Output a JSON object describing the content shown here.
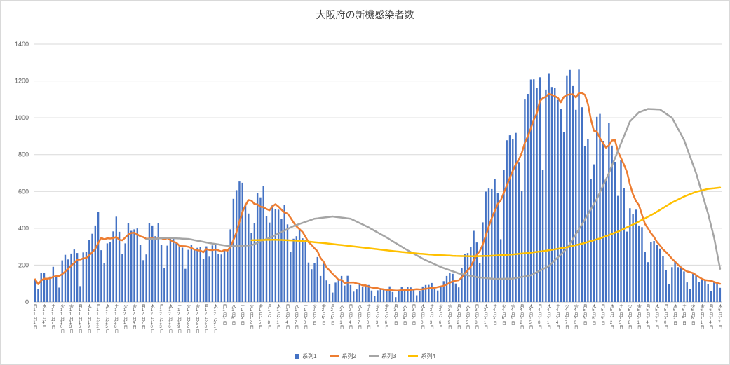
{
  "chart_data": {
    "type": "bar",
    "title": "大阪府の新機感染者数",
    "legend_position": "bottom",
    "gridlines": "horizontal",
    "y_axis": {
      "min": 0,
      "max": 1400,
      "step": 200,
      "tick_labels": [
        "0",
        "200",
        "400",
        "600",
        "800",
        "1000",
        "1200",
        "1400"
      ]
    },
    "x_axis": {
      "description": "daily dates from 11月1日 to 6月17日, tick label shown every 3 days as weekday + date, stacked vertical text",
      "tick_interval_days": 3,
      "weekdays": [
        "日",
        "月",
        "火",
        "水",
        "木",
        "金",
        "土"
      ],
      "start_weekday": "日",
      "months": [
        {
          "month": 11,
          "days": 30
        },
        {
          "month": 12,
          "days": 31
        },
        {
          "month": 1,
          "days": 31
        },
        {
          "month": 2,
          "days": 28
        },
        {
          "month": 3,
          "days": 31
        },
        {
          "month": 4,
          "days": 30
        },
        {
          "month": 5,
          "days": 31
        },
        {
          "month": 6,
          "days": 17
        }
      ]
    },
    "series": [
      {
        "name": "系列1",
        "type": "bar",
        "color": "#4472C4",
        "values": [
          123,
          70,
          156,
          157,
          125,
          138,
          191,
          143,
          78,
          226,
          256,
          231,
          263,
          285,
          266,
          86,
          269,
          273,
          338,
          370,
          415,
          490,
          281,
          210,
          318,
          326,
          383,
          463,
          381,
          262,
          318,
          427,
          386,
          394,
          399,
          310,
          227,
          258,
          427,
          415,
          357,
          429,
          308,
          185,
          306,
          351,
          351,
          324,
          311,
          295,
          180,
          283,
          312,
          289,
          294,
          299,
          233,
          302,
          246,
          307,
          313,
          262,
          258,
          286,
          279,
          394,
          560,
          607,
          654,
          647,
          532,
          480,
          374,
          427,
          592,
          568,
          629,
          464,
          431,
          525,
          506,
          501,
          450,
          525,
          421,
          273,
          343,
          357,
          397,
          346,
          338,
          214,
          178,
          211,
          244,
          141,
          209,
          117,
          98,
          51,
          105,
          117,
          141,
          89,
          142,
          92,
          56,
          68,
          100,
          82,
          91,
          92,
          62,
          34,
          63,
          71,
          67,
          69,
          85,
          54,
          26,
          65,
          81,
          70,
          83,
          79,
          71,
          36,
          58,
          84,
          92,
          93,
          103,
          72,
          62,
          82,
          113,
          141,
          158,
          153,
          100,
          79,
          183,
          262,
          266,
          300,
          386,
          323,
          213,
          432,
          599,
          616,
          613,
          666,
          593,
          341,
          719,
          878,
          905,
          883,
          918,
          760,
          603,
          1099,
          1130,
          1208,
          1209,
          1161,
          1220,
          719,
          1153,
          1242,
          1167,
          1162,
          1097,
          1050,
          922,
          1230,
          1260,
          1172,
          1043,
          1262,
          1057,
          847,
          884,
          668,
          747,
          1005,
          1021,
          875,
          668,
          974,
          849,
          761,
          576,
          772,
          620,
          382,
          509,
          477,
          501,
          415,
          406,
          274,
          216,
          327,
          331,
          309,
          290,
          250,
          175,
          98,
          189,
          223,
          189,
          189,
          166,
          106,
          72,
          153,
          148,
          108,
          123,
          121,
          96,
          57,
          108,
          108,
          77
        ]
      },
      {
        "name": "系列2",
        "type": "line",
        "color": "#ED7D31",
        "derived": "7-day trailing moving average of 系列1",
        "ma_window": 7
      },
      {
        "name": "系列3",
        "type": "line",
        "color": "#A5A5A5",
        "points": [
          [
            37,
            340
          ],
          [
            44,
            348
          ],
          [
            51,
            342
          ],
          [
            58,
            320
          ],
          [
            65,
            302
          ],
          [
            72,
            308
          ],
          [
            79,
            355
          ],
          [
            86,
            412
          ],
          [
            93,
            452
          ],
          [
            99,
            464
          ],
          [
            105,
            452
          ],
          [
            111,
            405
          ],
          [
            117,
            350
          ],
          [
            123,
            290
          ],
          [
            129,
            235
          ],
          [
            135,
            190
          ],
          [
            141,
            155
          ],
          [
            147,
            135
          ],
          [
            153,
            125
          ],
          [
            159,
            127
          ],
          [
            165,
            145
          ],
          [
            171,
            195
          ],
          [
            177,
            290
          ],
          [
            182,
            420
          ],
          [
            187,
            560
          ],
          [
            191,
            700
          ],
          [
            195,
            860
          ],
          [
            198,
            980
          ],
          [
            201,
            1030
          ],
          [
            204,
            1048
          ],
          [
            208,
            1045
          ],
          [
            212,
            1000
          ],
          [
            216,
            880
          ],
          [
            220,
            700
          ],
          [
            224,
            480
          ],
          [
            226,
            350
          ],
          [
            228,
            180
          ]
        ]
      },
      {
        "name": "系列4",
        "type": "line",
        "color": "#FFC000",
        "points": [
          [
            72,
            335
          ],
          [
            80,
            338
          ],
          [
            88,
            332
          ],
          [
            96,
            320
          ],
          [
            104,
            305
          ],
          [
            112,
            290
          ],
          [
            120,
            275
          ],
          [
            128,
            262
          ],
          [
            134,
            255
          ],
          [
            140,
            250
          ],
          [
            146,
            248
          ],
          [
            152,
            251
          ],
          [
            158,
            257
          ],
          [
            164,
            266
          ],
          [
            170,
            278
          ],
          [
            176,
            294
          ],
          [
            182,
            316
          ],
          [
            188,
            345
          ],
          [
            194,
            382
          ],
          [
            200,
            428
          ],
          [
            206,
            480
          ],
          [
            212,
            540
          ],
          [
            216,
            572
          ],
          [
            220,
            598
          ],
          [
            224,
            614
          ],
          [
            228,
            621
          ]
        ]
      }
    ]
  }
}
